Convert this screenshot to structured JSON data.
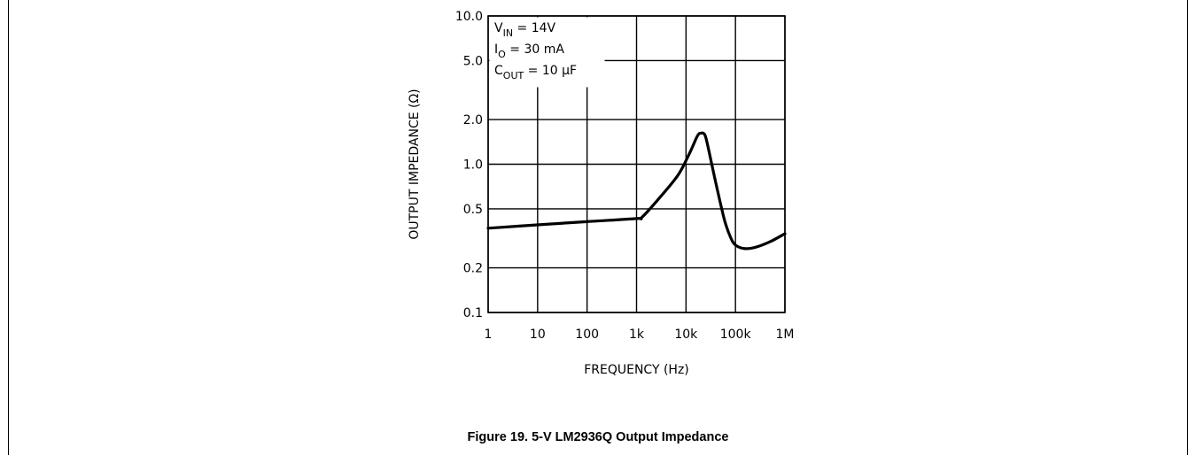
{
  "caption": "Figure 19. 5-V LM2936Q Output Impedance",
  "chart_data": {
    "type": "line",
    "title": "",
    "xlabel": "FREQUENCY (Hz)",
    "ylabel": "OUTPUT IMPEDANCE (Ω)",
    "x_scale": "log",
    "y_scale": "log",
    "xlim": [
      1,
      1000000
    ],
    "ylim": [
      0.1,
      10
    ],
    "grid": true,
    "x_ticks": [
      {
        "value": 1,
        "label": "1"
      },
      {
        "value": 10,
        "label": "10"
      },
      {
        "value": 100,
        "label": "100"
      },
      {
        "value": 1000,
        "label": "1k"
      },
      {
        "value": 10000,
        "label": "10k"
      },
      {
        "value": 100000,
        "label": "100k"
      },
      {
        "value": 1000000,
        "label": "1M"
      }
    ],
    "y_ticks": [
      {
        "value": 10,
        "label": "10.0"
      },
      {
        "value": 5,
        "label": "5.0"
      },
      {
        "value": 2,
        "label": "2.0"
      },
      {
        "value": 1,
        "label": "1.0"
      },
      {
        "value": 0.5,
        "label": "0.5"
      },
      {
        "value": 0.2,
        "label": "0.2"
      },
      {
        "value": 0.1,
        "label": "0.1"
      }
    ],
    "annotations": [
      {
        "main": "V",
        "sub": "IN",
        "rest": " = 14V"
      },
      {
        "main": "I",
        "sub": "O",
        "rest": " = 30 mA"
      },
      {
        "main": "C",
        "sub": "OUT",
        "rest": " = 10 μF"
      }
    ],
    "series": [
      {
        "x": [
          1,
          10,
          100,
          1000,
          1300,
          3000,
          7000,
          12000,
          17000,
          20000,
          24000,
          28000,
          40000,
          60000,
          80000,
          100000,
          150000,
          250000,
          500000,
          1000000
        ],
        "y": [
          0.37,
          0.39,
          0.41,
          0.43,
          0.44,
          0.6,
          0.85,
          1.2,
          1.55,
          1.62,
          1.58,
          1.3,
          0.75,
          0.42,
          0.32,
          0.285,
          0.27,
          0.275,
          0.3,
          0.34
        ]
      }
    ]
  }
}
